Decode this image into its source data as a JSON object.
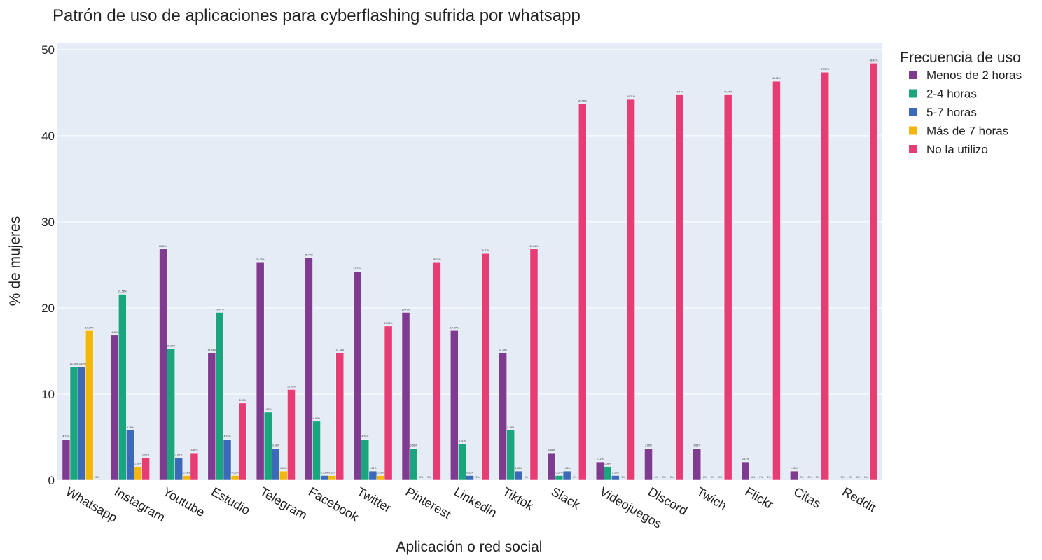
{
  "chart_data": {
    "type": "bar",
    "title": "Patrón de uso de aplicaciones para cyberflashing sufrida por whatsapp",
    "xlabel": "Aplicación o red social",
    "ylabel": "% de mujeres",
    "ylim": [
      0,
      50.8
    ],
    "yticks": [
      0,
      10,
      20,
      30,
      40,
      50
    ],
    "grid": true,
    "legend_title": "Frecuencia de uso",
    "legend_position": "right",
    "categories": [
      "Whatsapp",
      "Instagram",
      "Youtube",
      "Estudio",
      "Telegram",
      "Facebook",
      "Twitter",
      "Pinterest",
      "Linkedin",
      "Tiktok",
      "Slack",
      "Videojuegos",
      "Discord",
      "Twich",
      "Flickr",
      "Citas",
      "Reddit"
    ],
    "series": [
      {
        "name": "Menos de 2 horas",
        "color": "#7e3b8f",
        "values": [
          4.74,
          16.84,
          26.84,
          14.74,
          25.26,
          25.79,
          24.21,
          19.47,
          17.37,
          14.74,
          3.16,
          2.11,
          3.68,
          3.68,
          2.11,
          1.05,
          0
        ]
      },
      {
        "name": "2-4 horas",
        "color": "#1aa57e",
        "values": [
          13.16,
          21.58,
          15.26,
          19.47,
          7.89,
          6.84,
          4.74,
          3.68,
          4.21,
          5.79,
          0.53,
          1.58,
          0,
          0,
          0,
          0,
          0
        ]
      },
      {
        "name": "5-7 horas",
        "color": "#3c6ab8",
        "values": [
          13.16,
          5.79,
          2.63,
          4.74,
          3.68,
          0.53,
          1.05,
          0,
          0.53,
          1.05,
          1.05,
          0.53,
          0,
          0,
          0,
          0,
          0
        ]
      },
      {
        "name": "Más de 7 horas",
        "color": "#f2b70a",
        "values": [
          17.37,
          1.58,
          0.53,
          0.53,
          1.05,
          0.53,
          0.53,
          0,
          0,
          0,
          0,
          0,
          0,
          0,
          0,
          0,
          0
        ]
      },
      {
        "name": "No la utilizo",
        "color": "#e63d74",
        "values": [
          0,
          2.63,
          3.16,
          8.95,
          10.53,
          14.74,
          17.89,
          25.26,
          26.32,
          26.84,
          43.68,
          44.21,
          44.74,
          44.74,
          46.32,
          47.37,
          48.42
        ]
      }
    ],
    "data_labels": [
      [
        "4.74%",
        "13.16%",
        "13.16%",
        "17.37%",
        "0%"
      ],
      [
        "16.84%",
        "21.58%",
        "5.79%",
        "1.58%",
        "2.63%"
      ],
      [
        "26.84%",
        "15.26%",
        "2.63%",
        "0.53%",
        "3.16%"
      ],
      [
        "14.74%",
        "19.47%",
        "4.74%",
        "0.53%",
        "8.95%"
      ],
      [
        "25.26%",
        "7.89%",
        "3.68%",
        "1.05%",
        "10.53%"
      ],
      [
        "25.79%",
        "6.84%",
        "0.53%",
        "0.53%",
        "14.74%"
      ],
      [
        "24.21%",
        "4.74%",
        "1.05%",
        "0.53%",
        "17.89%"
      ],
      [
        "19.47%",
        "3.68%",
        "0%",
        "0%",
        "25.26%"
      ],
      [
        "17.37%",
        "4.21%",
        "0.53%",
        "0%",
        "26.32%"
      ],
      [
        "14.74%",
        "5.79%",
        "1.05%",
        "0%",
        "26.84%"
      ],
      [
        "3.16%",
        "0.53%",
        "1.05%",
        "0%",
        "43.68%"
      ],
      [
        "2.11%",
        "1.58%",
        "0.53%",
        "0%",
        "44.21%"
      ],
      [
        "3.68%",
        "0%",
        "0%",
        "0%",
        "44.74%"
      ],
      [
        "3.68%",
        "0%",
        "0%",
        "0%",
        "44.74%"
      ],
      [
        "2.11%",
        "0%",
        "0%",
        "0%",
        "46.32%"
      ],
      [
        "1.05%",
        "0%",
        "0%",
        "0%",
        "47.37%"
      ],
      [
        "0%",
        "0%",
        "0%",
        "0%",
        "48.42%"
      ]
    ]
  }
}
